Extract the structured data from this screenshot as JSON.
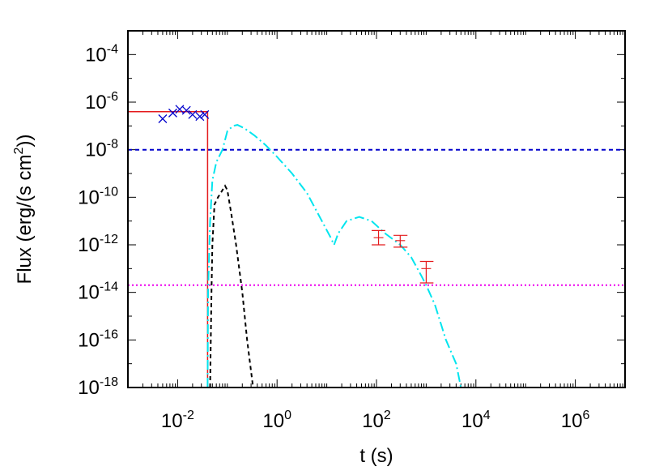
{
  "chart_data": {
    "type": "line",
    "xlabel": "t (s)",
    "ylabel": "Flux (erg/(s cm2))",
    "ylabel_parts": {
      "main": "Flux (erg/(s cm",
      "sup": "2",
      "tail": "))"
    },
    "xscale": "log",
    "yscale": "log",
    "xlim": [
      0.001,
      10000000
    ],
    "ylim": [
      1e-18,
      0.001
    ],
    "grid": false,
    "legend": "none",
    "x_ticks": [
      {
        "value": 0.01,
        "base": "10",
        "exp": "-2"
      },
      {
        "value": 1,
        "base": "10",
        "exp": "0"
      },
      {
        "value": 100,
        "base": "10",
        "exp": "2"
      },
      {
        "value": 10000,
        "base": "10",
        "exp": "4"
      },
      {
        "value": 1000000,
        "base": "10",
        "exp": "6"
      }
    ],
    "y_ticks": [
      {
        "value": 0.0001,
        "base": "10",
        "exp": "-4"
      },
      {
        "value": 1e-06,
        "base": "10",
        "exp": "-6"
      },
      {
        "value": 1e-08,
        "base": "10",
        "exp": "-8"
      },
      {
        "value": 1e-10,
        "base": "10",
        "exp": "-10"
      },
      {
        "value": 1e-12,
        "base": "10",
        "exp": "-12"
      },
      {
        "value": 1e-14,
        "base": "10",
        "exp": "-14"
      },
      {
        "value": 1e-16,
        "base": "10",
        "exp": "-16"
      },
      {
        "value": 1e-18,
        "base": "10",
        "exp": "-18"
      }
    ],
    "colors": {
      "red": "#e41a1c",
      "blue": "#0000cc",
      "cyan": "#00e5ee",
      "black": "#000000",
      "magenta": "#ee00ee",
      "frame": "#000000"
    },
    "series": [
      {
        "style": "solid",
        "color": "red",
        "points": [
          [
            0.001,
            4e-07
          ],
          [
            0.04,
            4e-07
          ],
          [
            0.04,
            1e-18
          ]
        ]
      },
      {
        "style": "dashed",
        "color": "blue",
        "points": [
          [
            0.001,
            1e-08
          ],
          [
            10000000,
            1e-08
          ]
        ]
      },
      {
        "style": "dotted",
        "color": "magenta",
        "points": [
          [
            0.001,
            2e-14
          ],
          [
            10000000,
            2e-14
          ]
        ]
      },
      {
        "style": "dash-dot",
        "color": "cyan",
        "points": [
          [
            0.04,
            1e-18
          ],
          [
            0.041,
            1e-14
          ],
          [
            0.045,
            1e-11
          ],
          [
            0.05,
            5e-10
          ],
          [
            0.06,
            3e-09
          ],
          [
            0.08,
            1e-08
          ],
          [
            0.1,
            6e-08
          ],
          [
            0.13,
            1e-07
          ],
          [
            0.16,
            1.1e-07
          ],
          [
            0.22,
            8e-08
          ],
          [
            0.35,
            4e-08
          ],
          [
            0.6,
            1.5e-08
          ],
          [
            1,
            5e-09
          ],
          [
            2,
            1e-09
          ],
          [
            4,
            1.5e-10
          ],
          [
            8,
            1e-11
          ],
          [
            12,
            2e-12
          ],
          [
            14,
            1e-12
          ],
          [
            17,
            3e-12
          ],
          [
            25,
            1e-11
          ],
          [
            45,
            1.5e-11
          ],
          [
            80,
            1e-11
          ],
          [
            150,
            3e-12
          ],
          [
            300,
            1e-12
          ],
          [
            500,
            3e-13
          ],
          [
            800,
            5e-14
          ],
          [
            1000,
            2e-14
          ],
          [
            1500,
            3e-15
          ],
          [
            2500,
            1e-16
          ],
          [
            4000,
            1e-17
          ],
          [
            5000,
            1e-18
          ]
        ]
      },
      {
        "style": "dashed",
        "color": "black",
        "points": [
          [
            0.045,
            1e-18
          ],
          [
            0.048,
            1e-14
          ],
          [
            0.05,
            1e-12
          ],
          [
            0.055,
            5e-11
          ],
          [
            0.065,
            1e-10
          ],
          [
            0.08,
            2e-10
          ],
          [
            0.09,
            3e-10
          ],
          [
            0.1,
            2e-10
          ],
          [
            0.12,
            2e-11
          ],
          [
            0.15,
            1e-12
          ],
          [
            0.2,
            1e-14
          ],
          [
            0.25,
            1e-16
          ],
          [
            0.33,
            1e-18
          ]
        ]
      }
    ],
    "markers_x": {
      "color": "blue",
      "points": [
        [
          0.005,
          2e-07
        ],
        [
          0.008,
          3.5e-07
        ],
        [
          0.011,
          5e-07
        ],
        [
          0.015,
          4.5e-07
        ],
        [
          0.02,
          3e-07
        ],
        [
          0.028,
          2.5e-07
        ],
        [
          0.035,
          3e-07
        ]
      ]
    },
    "errorbars": {
      "color": "red",
      "points": [
        {
          "x": 110,
          "y": 2e-12,
          "ylo": 1e-12,
          "yhi": 4e-12,
          "xlo": 80,
          "xhi": 150
        },
        {
          "x": 300,
          "y": 1.5e-12,
          "ylo": 8e-13,
          "yhi": 2.5e-12,
          "xlo": 220,
          "xhi": 420
        },
        {
          "x": 1000,
          "y": 1e-13,
          "ylo": 2.5e-14,
          "yhi": 2e-13,
          "xlo": 750,
          "xhi": 1400
        }
      ]
    }
  }
}
